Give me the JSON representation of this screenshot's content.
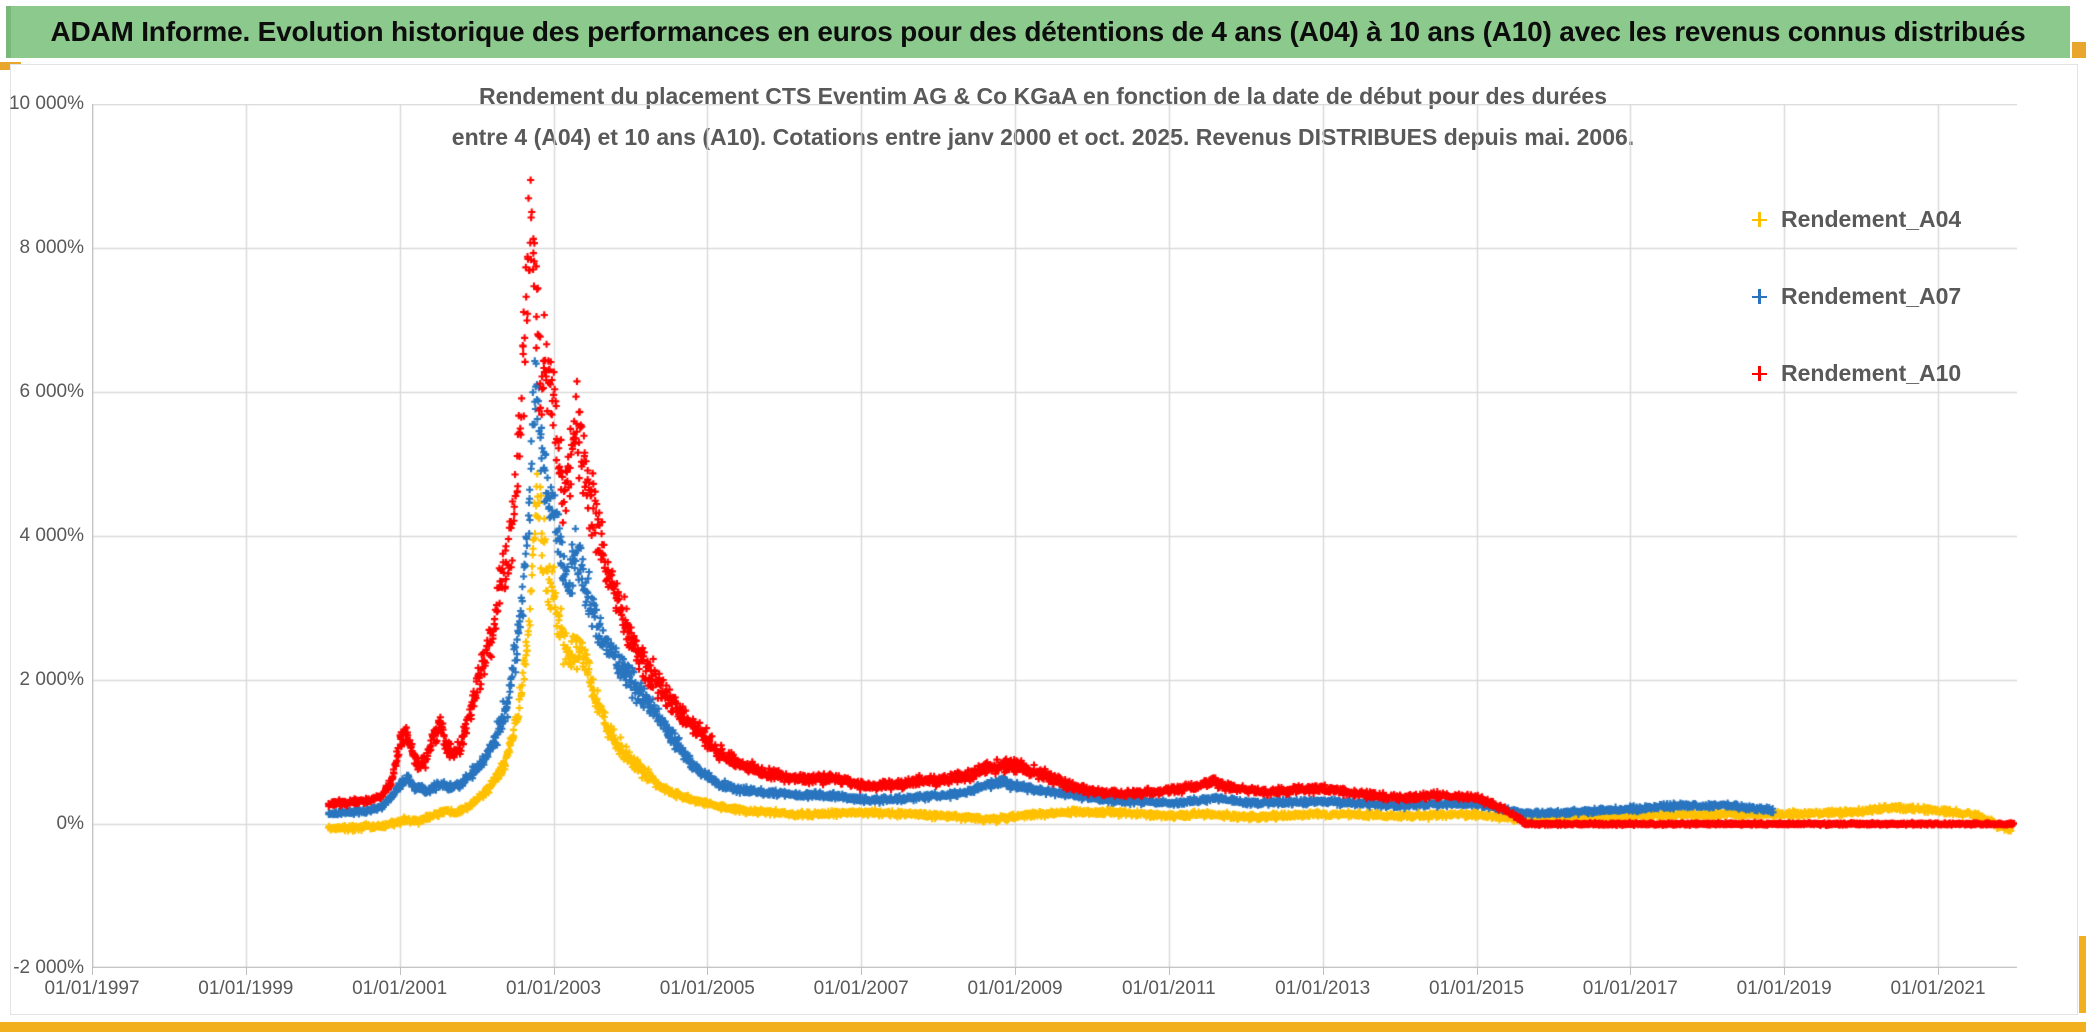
{
  "header": {
    "title": "ADAM Informe. Evolution historique des performances en euros pour des détentions de 4 ans (A04) à 10 ans (A10) avec les revenus connus distribués"
  },
  "colors": {
    "header_green": "#8cc98c",
    "header_green_edge": "#7ab77a",
    "gold_square": "#e9a62c",
    "gold_strip": "#f2b01e",
    "grid": "#d9d9d9",
    "axis": "#bfbfbf",
    "text_gray": "#595959"
  },
  "chart_data": {
    "type": "scatter",
    "title_line1": "Rendement du placement CTS Eventim AG & Co KGaA en fonction de la date de début pour des durées",
    "title_line2": "entre 4 (A04) et 10 ans (A10). Cotations entre janv 2000 et oct. 2025. Revenus DISTRIBUES depuis mai. 2006.",
    "x_axis": {
      "min_year": 1997,
      "max_year": 2022.03,
      "ticks": [
        {
          "year": 1997,
          "label": "01/01/1997"
        },
        {
          "year": 1999,
          "label": "01/01/1999"
        },
        {
          "year": 2001,
          "label": "01/01/2001"
        },
        {
          "year": 2003,
          "label": "01/01/2003"
        },
        {
          "year": 2005,
          "label": "01/01/2005"
        },
        {
          "year": 2007,
          "label": "01/01/2007"
        },
        {
          "year": 2009,
          "label": "01/01/2009"
        },
        {
          "year": 2011,
          "label": "01/01/2011"
        },
        {
          "year": 2013,
          "label": "01/01/2013"
        },
        {
          "year": 2015,
          "label": "01/01/2015"
        },
        {
          "year": 2017,
          "label": "01/01/2017"
        },
        {
          "year": 2019,
          "label": "01/01/2019"
        },
        {
          "year": 2021,
          "label": "01/01/2021"
        }
      ]
    },
    "y_axis": {
      "min": -2000,
      "max": 10000,
      "step": 2000,
      "unit": "%",
      "ticks": [
        {
          "value": 10000,
          "label": "10 000%"
        },
        {
          "value": 8000,
          "label": "8 000%"
        },
        {
          "value": 6000,
          "label": "6 000%"
        },
        {
          "value": 4000,
          "label": "4 000%"
        },
        {
          "value": 2000,
          "label": "2 000%"
        },
        {
          "value": 0,
          "label": "0%"
        },
        {
          "value": -2000,
          "label": "-2 000%"
        }
      ]
    },
    "legend_position": "right-top",
    "marker": "plus",
    "series": [
      {
        "name": "Rendement_A04",
        "color": "#FFC000",
        "spread_rel": 0.17,
        "spread_min": 55,
        "anchors_year_pct": [
          [
            2000.08,
            -50
          ],
          [
            2000.3,
            -60
          ],
          [
            2000.6,
            -40
          ],
          [
            2000.85,
            -20
          ],
          [
            2001.05,
            60
          ],
          [
            2001.25,
            40
          ],
          [
            2001.45,
            120
          ],
          [
            2001.6,
            180
          ],
          [
            2001.75,
            150
          ],
          [
            2001.9,
            250
          ],
          [
            2002.05,
            380
          ],
          [
            2002.2,
            550
          ],
          [
            2002.35,
            800
          ],
          [
            2002.5,
            1300
          ],
          [
            2002.6,
            2000
          ],
          [
            2002.7,
            3000
          ],
          [
            2002.75,
            4200
          ],
          [
            2002.8,
            4600
          ],
          [
            2002.85,
            3900
          ],
          [
            2002.92,
            3500
          ],
          [
            2003.0,
            3200
          ],
          [
            2003.1,
            2700
          ],
          [
            2003.2,
            2300
          ],
          [
            2003.3,
            2500
          ],
          [
            2003.4,
            2300
          ],
          [
            2003.5,
            1900
          ],
          [
            2003.6,
            1600
          ],
          [
            2003.7,
            1350
          ],
          [
            2003.8,
            1150
          ],
          [
            2003.95,
            950
          ],
          [
            2004.15,
            750
          ],
          [
            2004.35,
            550
          ],
          [
            2004.55,
            420
          ],
          [
            2004.75,
            350
          ],
          [
            2004.95,
            300
          ],
          [
            2005.2,
            230
          ],
          [
            2005.5,
            180
          ],
          [
            2005.8,
            160
          ],
          [
            2006.1,
            140
          ],
          [
            2006.4,
            130
          ],
          [
            2006.7,
            150
          ],
          [
            2007.0,
            160
          ],
          [
            2007.3,
            150
          ],
          [
            2007.6,
            140
          ],
          [
            2007.9,
            120
          ],
          [
            2008.2,
            100
          ],
          [
            2008.5,
            80
          ],
          [
            2008.75,
            60
          ],
          [
            2009.0,
            110
          ],
          [
            2009.3,
            140
          ],
          [
            2009.6,
            160
          ],
          [
            2009.9,
            170
          ],
          [
            2010.2,
            160
          ],
          [
            2010.5,
            150
          ],
          [
            2010.8,
            130
          ],
          [
            2011.1,
            120
          ],
          [
            2011.4,
            140
          ],
          [
            2011.7,
            120
          ],
          [
            2012.0,
            100
          ],
          [
            2012.3,
            110
          ],
          [
            2012.6,
            120
          ],
          [
            2012.9,
            130
          ],
          [
            2013.2,
            140
          ],
          [
            2013.5,
            130
          ],
          [
            2013.8,
            120
          ],
          [
            2014.1,
            110
          ],
          [
            2014.4,
            120
          ],
          [
            2014.7,
            130
          ],
          [
            2015.0,
            130
          ],
          [
            2015.3,
            100
          ],
          [
            2015.6,
            70
          ],
          [
            2015.9,
            90
          ],
          [
            2016.2,
            90
          ],
          [
            2016.5,
            100
          ],
          [
            2016.8,
            110
          ],
          [
            2017.1,
            110
          ],
          [
            2017.4,
            120
          ],
          [
            2017.7,
            130
          ],
          [
            2018.0,
            130
          ],
          [
            2018.3,
            140
          ],
          [
            2018.6,
            130
          ],
          [
            2018.9,
            140
          ],
          [
            2019.2,
            140
          ],
          [
            2019.5,
            150
          ],
          [
            2019.8,
            160
          ],
          [
            2020.1,
            190
          ],
          [
            2020.35,
            220
          ],
          [
            2020.6,
            210
          ],
          [
            2020.85,
            200
          ],
          [
            2021.1,
            180
          ],
          [
            2021.3,
            150
          ],
          [
            2021.5,
            120
          ],
          [
            2021.65,
            60
          ],
          [
            2021.8,
            -30
          ],
          [
            2021.95,
            -80
          ]
        ]
      },
      {
        "name": "Rendement_A07",
        "color": "#2874BE",
        "spread_rel": 0.15,
        "spread_min": 50,
        "anchors_year_pct": [
          [
            2000.08,
            140
          ],
          [
            2000.3,
            160
          ],
          [
            2000.6,
            180
          ],
          [
            2000.8,
            260
          ],
          [
            2001.0,
            520
          ],
          [
            2001.1,
            640
          ],
          [
            2001.2,
            520
          ],
          [
            2001.35,
            440
          ],
          [
            2001.5,
            560
          ],
          [
            2001.65,
            500
          ],
          [
            2001.8,
            560
          ],
          [
            2001.95,
            700
          ],
          [
            2002.1,
            900
          ],
          [
            2002.25,
            1200
          ],
          [
            2002.4,
            1700
          ],
          [
            2002.5,
            2300
          ],
          [
            2002.6,
            3200
          ],
          [
            2002.68,
            4300
          ],
          [
            2002.73,
            5500
          ],
          [
            2002.78,
            6100
          ],
          [
            2002.83,
            5300
          ],
          [
            2002.9,
            4800
          ],
          [
            2002.95,
            4500
          ],
          [
            2003.0,
            4300
          ],
          [
            2003.1,
            3700
          ],
          [
            2003.2,
            3400
          ],
          [
            2003.3,
            3700
          ],
          [
            2003.4,
            3400
          ],
          [
            2003.5,
            3000
          ],
          [
            2003.6,
            2700
          ],
          [
            2003.7,
            2500
          ],
          [
            2003.8,
            2300
          ],
          [
            2003.95,
            2100
          ],
          [
            2004.15,
            1800
          ],
          [
            2004.35,
            1500
          ],
          [
            2004.55,
            1200
          ],
          [
            2004.75,
            900
          ],
          [
            2004.95,
            700
          ],
          [
            2005.15,
            560
          ],
          [
            2005.4,
            480
          ],
          [
            2005.7,
            440
          ],
          [
            2006.0,
            420
          ],
          [
            2006.3,
            390
          ],
          [
            2006.6,
            400
          ],
          [
            2006.9,
            350
          ],
          [
            2007.2,
            330
          ],
          [
            2007.5,
            350
          ],
          [
            2007.8,
            380
          ],
          [
            2008.1,
            400
          ],
          [
            2008.4,
            450
          ],
          [
            2008.65,
            540
          ],
          [
            2008.85,
            580
          ],
          [
            2009.05,
            520
          ],
          [
            2009.3,
            480
          ],
          [
            2009.6,
            430
          ],
          [
            2009.9,
            380
          ],
          [
            2010.2,
            330
          ],
          [
            2010.5,
            310
          ],
          [
            2010.8,
            300
          ],
          [
            2011.1,
            290
          ],
          [
            2011.4,
            330
          ],
          [
            2011.65,
            360
          ],
          [
            2011.9,
            310
          ],
          [
            2012.2,
            290
          ],
          [
            2012.5,
            300
          ],
          [
            2012.8,
            310
          ],
          [
            2013.1,
            310
          ],
          [
            2013.4,
            290
          ],
          [
            2013.7,
            270
          ],
          [
            2014.0,
            250
          ],
          [
            2014.3,
            270
          ],
          [
            2014.6,
            280
          ],
          [
            2014.9,
            290
          ],
          [
            2015.1,
            260
          ],
          [
            2015.35,
            200
          ],
          [
            2015.6,
            150
          ],
          [
            2015.9,
            150
          ],
          [
            2016.2,
            160
          ],
          [
            2016.5,
            180
          ],
          [
            2016.8,
            200
          ],
          [
            2017.1,
            210
          ],
          [
            2017.4,
            240
          ],
          [
            2017.7,
            260
          ],
          [
            2017.95,
            250
          ],
          [
            2018.2,
            260
          ],
          [
            2018.45,
            240
          ],
          [
            2018.65,
            210
          ],
          [
            2018.85,
            190
          ]
        ]
      },
      {
        "name": "Rendement_A10",
        "color": "#FF0000",
        "spread_rel": 0.16,
        "spread_min": 55,
        "anchors_year_pct": [
          [
            2000.08,
            280
          ],
          [
            2000.3,
            300
          ],
          [
            2000.6,
            320
          ],
          [
            2000.75,
            380
          ],
          [
            2000.9,
            600
          ],
          [
            2001.0,
            1150
          ],
          [
            2001.08,
            1300
          ],
          [
            2001.15,
            1050
          ],
          [
            2001.25,
            800
          ],
          [
            2001.35,
            900
          ],
          [
            2001.45,
            1250
          ],
          [
            2001.55,
            1400
          ],
          [
            2001.6,
            1100
          ],
          [
            2001.7,
            950
          ],
          [
            2001.8,
            1100
          ],
          [
            2001.9,
            1500
          ],
          [
            2002.0,
            1900
          ],
          [
            2002.1,
            2300
          ],
          [
            2002.2,
            2600
          ],
          [
            2002.3,
            3300
          ],
          [
            2002.4,
            3600
          ],
          [
            2002.5,
            4400
          ],
          [
            2002.55,
            5200
          ],
          [
            2002.6,
            6200
          ],
          [
            2002.65,
            7300
          ],
          [
            2002.7,
            8300
          ],
          [
            2002.75,
            7800
          ],
          [
            2002.8,
            6700
          ],
          [
            2002.85,
            6100
          ],
          [
            2002.9,
            6500
          ],
          [
            2002.95,
            6100
          ],
          [
            2003.0,
            5900
          ],
          [
            2003.05,
            5300
          ],
          [
            2003.1,
            4900
          ],
          [
            2003.15,
            4600
          ],
          [
            2003.2,
            4800
          ],
          [
            2003.3,
            5500
          ],
          [
            2003.35,
            5300
          ],
          [
            2003.45,
            4600
          ],
          [
            2003.55,
            4200
          ],
          [
            2003.65,
            3700
          ],
          [
            2003.75,
            3300
          ],
          [
            2003.85,
            3100
          ],
          [
            2003.95,
            2700
          ],
          [
            2004.1,
            2300
          ],
          [
            2004.3,
            2000
          ],
          [
            2004.5,
            1750
          ],
          [
            2004.7,
            1500
          ],
          [
            2004.9,
            1280
          ],
          [
            2005.1,
            1050
          ],
          [
            2005.3,
            900
          ],
          [
            2005.5,
            800
          ],
          [
            2005.7,
            720
          ],
          [
            2006.0,
            660
          ],
          [
            2006.3,
            620
          ],
          [
            2006.6,
            640
          ],
          [
            2006.9,
            560
          ],
          [
            2007.2,
            520
          ],
          [
            2007.5,
            560
          ],
          [
            2007.8,
            600
          ],
          [
            2008.1,
            620
          ],
          [
            2008.4,
            680
          ],
          [
            2008.7,
            780
          ],
          [
            2008.9,
            820
          ],
          [
            2009.1,
            760
          ],
          [
            2009.35,
            700
          ],
          [
            2009.6,
            580
          ],
          [
            2009.8,
            500
          ],
          [
            2010.1,
            450
          ],
          [
            2010.4,
            420
          ],
          [
            2010.7,
            440
          ],
          [
            2011.0,
            460
          ],
          [
            2011.3,
            520
          ],
          [
            2011.55,
            600
          ],
          [
            2011.75,
            520
          ],
          [
            2012.0,
            480
          ],
          [
            2012.3,
            440
          ],
          [
            2012.6,
            470
          ],
          [
            2012.9,
            490
          ],
          [
            2013.2,
            460
          ],
          [
            2013.5,
            420
          ],
          [
            2013.8,
            380
          ],
          [
            2014.1,
            360
          ],
          [
            2014.4,
            400
          ],
          [
            2014.7,
            390
          ],
          [
            2015.0,
            360
          ],
          [
            2015.2,
            280
          ],
          [
            2015.4,
            180
          ],
          [
            2015.55,
            80
          ],
          [
            2015.62,
            20
          ]
        ],
        "zero_run": {
          "from_year": 2015.62,
          "to_year": 2022.0,
          "value_pct": 0,
          "spread": 25
        }
      }
    ]
  }
}
